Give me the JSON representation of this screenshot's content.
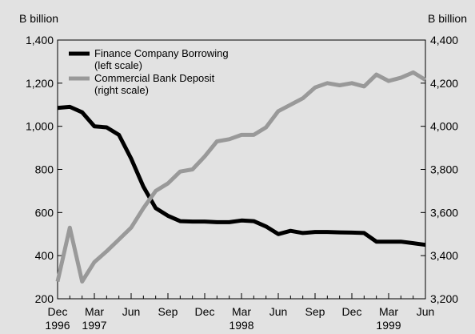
{
  "chart_data": {
    "type": "line",
    "left_axis": {
      "unit": "B billion",
      "range": [
        200,
        1400
      ],
      "ticks": [
        "1,400",
        "1,200",
        "1,000",
        "800",
        "600",
        "400",
        "200"
      ]
    },
    "right_axis": {
      "unit": "B billion",
      "range": [
        3200,
        4400
      ],
      "ticks": [
        "4,400",
        "4,200",
        "4,000",
        "3,800",
        "3,600",
        "3,400",
        "3,200"
      ]
    },
    "x_axis": {
      "months": [
        "Dec",
        "Mar",
        "Jun",
        "Sep",
        "Dec",
        "Mar",
        "Jun",
        "Sep",
        "Dec",
        "Mar",
        "Jun"
      ],
      "years": [
        "1996",
        "1997",
        "1998",
        "1999"
      ]
    },
    "legend": {
      "placement": "top-left",
      "items": [
        {
          "line1": "Finance Company Borrowing",
          "line2": "(left scale)"
        },
        {
          "line1": "Commercial Bank Deposit",
          "line2": "(right scale)"
        }
      ]
    },
    "series": [
      {
        "name": "Finance Company Borrowing (left scale)",
        "axis": "left",
        "color": "#000000",
        "values": [
          1085,
          1090,
          1065,
          1000,
          995,
          960,
          850,
          720,
          620,
          585,
          560,
          558,
          558,
          555,
          555,
          563,
          560,
          535,
          500,
          515,
          505,
          510,
          510,
          508,
          507,
          505,
          465,
          465,
          465,
          458,
          450
        ]
      },
      {
        "name": "Commercial Bank Deposit (right scale)",
        "axis": "right",
        "color": "#999999",
        "values": [
          3280,
          3530,
          3280,
          3370,
          3420,
          3475,
          3530,
          3620,
          3700,
          3735,
          3790,
          3800,
          3860,
          3930,
          3940,
          3960,
          3960,
          3995,
          4070,
          4100,
          4130,
          4180,
          4200,
          4190,
          4200,
          4185,
          4240,
          4210,
          4225,
          4250,
          4215
        ]
      }
    ]
  }
}
